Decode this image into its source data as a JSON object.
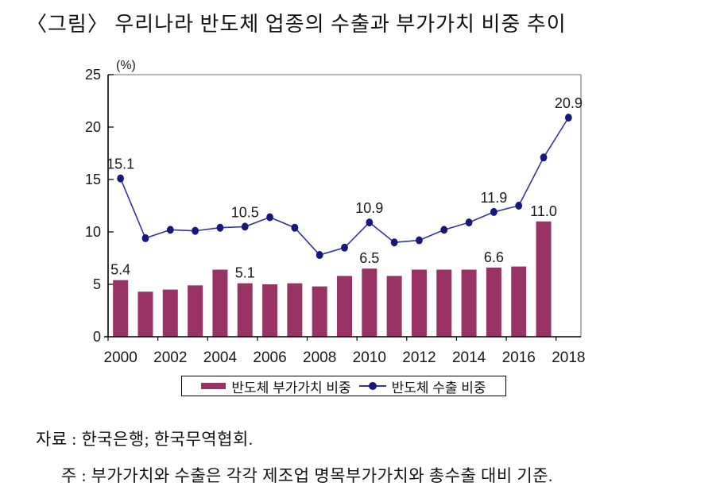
{
  "title": "〈그림〉 우리나라 반도체 업종의 수출과 부가가치 비중 추이",
  "unit_label": "(%)",
  "legend": {
    "bar_label": "반도체 부가가치 비중",
    "line_label": "반도체 수출 비중"
  },
  "footer": {
    "source": "자료 : 한국은행; 한국무역협회.",
    "note": "주 : 부가가치와 수출은 각각 제조업 명목부가가치와 총수출 대비 기준."
  },
  "colors": {
    "bar": "#993366",
    "line": "#34349b",
    "marker": "#17177c",
    "axis": "#000000",
    "border": "#8a8a8a",
    "text": "#1a1a1a"
  },
  "chart_data": {
    "type": "bar+line",
    "x": [
      2000,
      2001,
      2002,
      2003,
      2004,
      2005,
      2006,
      2007,
      2008,
      2009,
      2010,
      2011,
      2012,
      2013,
      2014,
      2015,
      2016,
      2017,
      2018
    ],
    "xtick_labels": [
      "2000",
      "2002",
      "2004",
      "2006",
      "2008",
      "2010",
      "2012",
      "2014",
      "2016",
      "2018"
    ],
    "ylim": [
      0,
      25
    ],
    "ytick_interval": 5,
    "ytick_labels": [
      "0",
      "5",
      "10",
      "15",
      "20",
      "25"
    ],
    "grid": "off",
    "legend_position": "bottom",
    "ylabel": "(%)",
    "series": [
      {
        "name": "반도체 부가가치 비중",
        "type": "bar",
        "values": [
          5.4,
          4.3,
          4.5,
          4.9,
          6.4,
          5.1,
          5.0,
          5.1,
          4.8,
          5.8,
          6.5,
          5.8,
          6.4,
          6.4,
          6.4,
          6.6,
          6.7,
          11.0,
          null
        ],
        "point_labels": {
          "2000": "5.4",
          "2005": "5.1",
          "2010": "6.5",
          "2015": "6.6",
          "2017": "11.0"
        }
      },
      {
        "name": "반도체 수출 비중",
        "type": "line",
        "values": [
          15.1,
          9.4,
          10.2,
          10.1,
          10.4,
          10.5,
          11.4,
          10.4,
          7.8,
          8.5,
          10.9,
          9.0,
          9.2,
          10.2,
          10.9,
          11.9,
          12.5,
          17.1,
          20.9
        ],
        "point_labels": {
          "2000": "15.1",
          "2005": "10.5",
          "2010": "10.9",
          "2015": "11.9",
          "2018": "20.9"
        }
      }
    ]
  }
}
